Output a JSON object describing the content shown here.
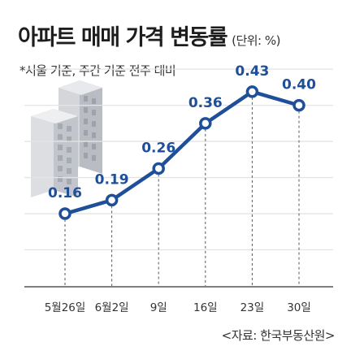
{
  "header": {
    "title": "아파트 매매 가격 변동률",
    "unit": "(단위: %)",
    "note": "*서울 기준, 주간 기준 전주 대비"
  },
  "footer": {
    "source": "<자료: 한국부동산원>"
  },
  "chart_data": {
    "type": "line",
    "title": "아파트 매매 가격 변동률",
    "unit": "%",
    "categories": [
      "5월26일",
      "6월2일",
      "9일",
      "16일",
      "23일",
      "30일"
    ],
    "values": [
      0.16,
      0.19,
      0.26,
      0.36,
      0.43,
      0.4
    ],
    "value_labels": [
      "0.16",
      "0.19",
      "0.26",
      "0.36",
      "0.43",
      "0.40"
    ],
    "ylim": [
      0.0,
      0.5
    ],
    "grid": true,
    "legend": "none",
    "line_color": "#1f4f99",
    "grid_color": "#e4e4e4",
    "decoration": "building-icon"
  }
}
